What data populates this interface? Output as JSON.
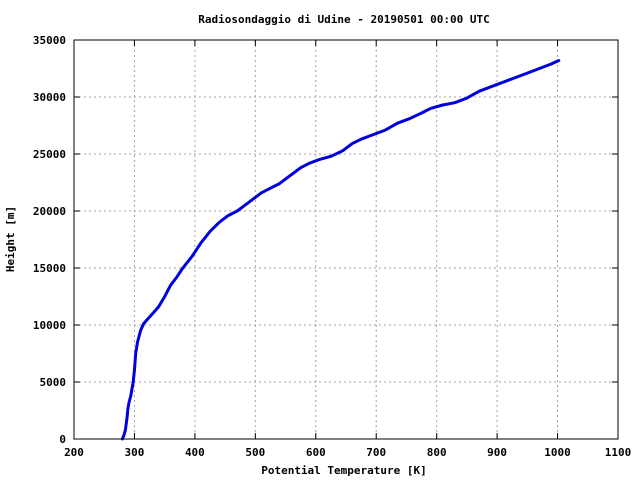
{
  "chart_data": {
    "type": "line",
    "title": "Radiosondaggio di Udine - 20190501 00:00 UTC",
    "xlabel": "Potential Temperature [K]",
    "ylabel": "Height [m]",
    "xlim": [
      200,
      1100
    ],
    "ylim": [
      0,
      35000
    ],
    "x_ticks": [
      200,
      300,
      400,
      500,
      600,
      700,
      800,
      900,
      1000,
      1100
    ],
    "y_ticks": [
      0,
      5000,
      10000,
      15000,
      20000,
      25000,
      30000,
      35000
    ],
    "grid": true,
    "legend": "none",
    "series": [
      {
        "color": "#0000dd",
        "x": [
          280,
          283,
          285,
          286,
          287,
          288,
          289,
          291,
          294,
          296,
          298,
          300,
          302,
          305,
          310,
          315,
          320,
          330,
          340,
          350,
          360,
          370,
          380,
          395,
          410,
          425,
          440,
          455,
          470,
          490,
          510,
          525,
          540,
          560,
          575,
          590,
          605,
          625,
          645,
          660,
          675,
          695,
          715,
          735,
          755,
          775,
          790,
          810,
          830,
          850,
          870,
          890,
          910,
          930,
          950,
          970,
          990,
          1002
        ],
        "y": [
          0,
          400,
          800,
          1200,
          1600,
          2000,
          2600,
          3200,
          3800,
          4400,
          5000,
          6000,
          7500,
          8500,
          9500,
          10100,
          10400,
          11000,
          11600,
          12500,
          13500,
          14200,
          15000,
          16000,
          17200,
          18200,
          19000,
          19600,
          20000,
          20800,
          21600,
          22000,
          22400,
          23200,
          23800,
          24200,
          24500,
          24800,
          25300,
          25900,
          26300,
          26700,
          27100,
          27700,
          28100,
          28600,
          29000,
          29300,
          29500,
          29900,
          30500,
          30900,
          31300,
          31700,
          32100,
          32500,
          32900,
          33200
        ]
      }
    ]
  }
}
